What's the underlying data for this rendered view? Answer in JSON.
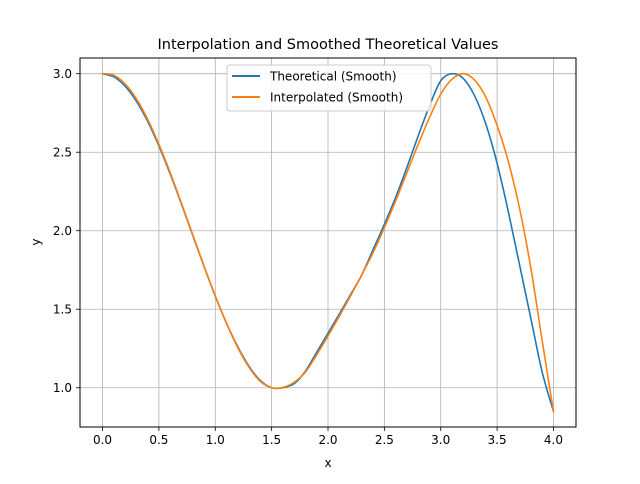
{
  "chart_data": {
    "type": "line",
    "title": "Interpolation and Smoothed Theoretical Values",
    "xlabel": "x",
    "ylabel": "y",
    "xlim": [
      -0.2,
      4.2
    ],
    "ylim": [
      0.75,
      3.1
    ],
    "xticks": [
      0.0,
      0.5,
      1.0,
      1.5,
      2.0,
      2.5,
      3.0,
      3.5,
      4.0
    ],
    "xtick_labels": [
      "0.0",
      "0.5",
      "1.0",
      "1.5",
      "2.0",
      "2.5",
      "3.0",
      "3.5",
      "4.0"
    ],
    "yticks": [
      1.0,
      1.5,
      2.0,
      2.5,
      3.0
    ],
    "ytick_labels": [
      "1.0",
      "1.5",
      "2.0",
      "2.5",
      "3.0"
    ],
    "grid": true,
    "legend_placement": "upper center",
    "series": [
      {
        "name": "Theoretical (Smooth)",
        "color": "#1f77b4",
        "x": [
          0.0,
          0.1,
          0.2,
          0.3,
          0.4,
          0.5,
          0.6,
          0.7,
          0.8,
          0.9,
          1.0,
          1.1,
          1.2,
          1.3,
          1.4,
          1.5,
          1.6,
          1.7,
          1.8,
          1.9,
          2.0,
          2.1,
          2.2,
          2.3,
          2.4,
          2.5,
          2.6,
          2.7,
          2.8,
          2.9,
          3.0,
          3.1,
          3.2,
          3.3,
          3.4,
          3.5,
          3.6,
          3.7,
          3.8,
          3.9,
          4.0
        ],
        "y": [
          3.0,
          2.98,
          2.921,
          2.825,
          2.697,
          2.54,
          2.362,
          2.17,
          1.971,
          1.773,
          1.584,
          1.41,
          1.26,
          1.136,
          1.046,
          1.0,
          1.0,
          1.026,
          1.106,
          1.227,
          1.347,
          1.469,
          1.593,
          1.719,
          1.88,
          2.041,
          2.212,
          2.403,
          2.604,
          2.794,
          2.955,
          3.0,
          2.97,
          2.86,
          2.68,
          2.43,
          2.12,
          1.78,
          1.44,
          1.1,
          0.85
        ]
      },
      {
        "name": "Interpolated (Smooth)",
        "color": "#ff7f0e",
        "x": [
          0.0,
          0.1,
          0.2,
          0.3,
          0.4,
          0.5,
          0.6,
          0.7,
          0.8,
          0.9,
          1.0,
          1.1,
          1.2,
          1.3,
          1.4,
          1.5,
          1.6,
          1.7,
          1.8,
          1.9,
          2.0,
          2.1,
          2.2,
          2.3,
          2.4,
          2.5,
          2.6,
          2.7,
          2.8,
          2.9,
          3.0,
          3.1,
          3.2,
          3.3,
          3.4,
          3.5,
          3.6,
          3.7,
          3.8,
          3.9,
          4.0
        ],
        "y": [
          3.0,
          2.99,
          2.935,
          2.84,
          2.71,
          2.55,
          2.37,
          2.175,
          1.975,
          1.775,
          1.585,
          1.41,
          1.255,
          1.13,
          1.04,
          1.0,
          1.002,
          1.035,
          1.1,
          1.21,
          1.33,
          1.455,
          1.585,
          1.72,
          1.86,
          2.02,
          2.19,
          2.37,
          2.55,
          2.72,
          2.87,
          2.965,
          3.0,
          2.96,
          2.85,
          2.67,
          2.44,
          2.14,
          1.76,
          1.3,
          0.85
        ]
      }
    ]
  }
}
